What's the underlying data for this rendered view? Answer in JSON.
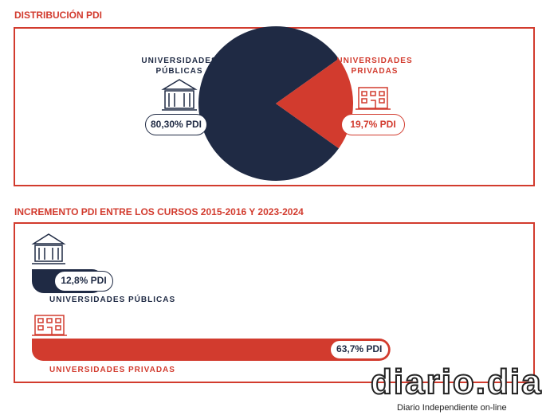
{
  "chart_data": [
    {
      "type": "pie",
      "title": "DISTRIBUCIÓN PDI",
      "categories": [
        "UNIVERSIDADES PÚBLICAS",
        "UNIVERSIDADES PRIVADAS"
      ],
      "values": [
        80.3,
        19.7
      ],
      "value_labels": [
        "80,30% PDI",
        "19,7% PDI"
      ],
      "colors": [
        "#1f2a44",
        "#d23b2e"
      ]
    },
    {
      "type": "hbar",
      "title": "INCREMENTO PDI ENTRE LOS CURSOS 2015-2016 Y 2023-2024",
      "categories": [
        "UNIVERSIDADES PÚBLICAS",
        "UNIVERSIDADES PRIVADAS"
      ],
      "values": [
        12.8,
        63.7
      ],
      "value_labels": [
        "12,8% PDI",
        "63,7% PDI"
      ],
      "colors": [
        "#1f2a44",
        "#d23b2e"
      ]
    }
  ],
  "watermark": {
    "logo": "diario.dia",
    "tagline": "Diario Independiente on-line"
  }
}
